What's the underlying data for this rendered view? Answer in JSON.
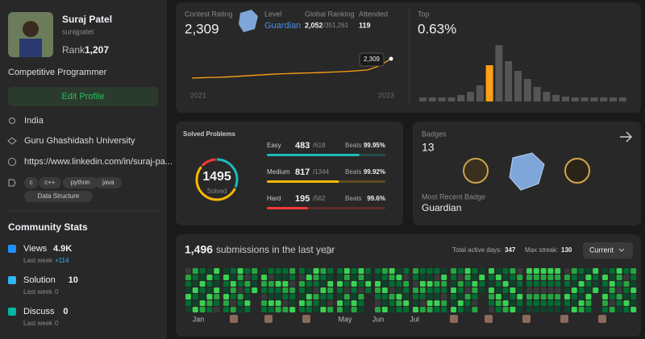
{
  "profile": {
    "name": "Suraj Patel",
    "username": "surajpatel",
    "rank_label": "Rank",
    "rank": "1,207",
    "title": "Competitive Programmer",
    "edit_button": "Edit Profile",
    "location": "India",
    "school": "Guru Ghashidash University",
    "link": "https://www.linkedin.com/in/suraj-pa...",
    "skills": [
      "c",
      "c++",
      "python",
      "java",
      "Data Structure"
    ]
  },
  "community": {
    "title": "Community Stats",
    "items": [
      {
        "label": "Views",
        "value": "4.9K",
        "week_label": "Last week",
        "week_value": "+114"
      },
      {
        "label": "Solution",
        "value": "10",
        "week_label": "Last week",
        "week_value": "0"
      },
      {
        "label": "Discuss",
        "value": "0",
        "week_label": "Last week",
        "week_value": "0"
      }
    ]
  },
  "contest": {
    "label": "Contest Rating",
    "rating": "2,309",
    "level_label": "Level",
    "level": "Guardian",
    "ranking_label": "Global Ranking",
    "ranking": "2,052",
    "ranking_total": "/351,261",
    "attended_label": "Attended",
    "attended": "119",
    "rating_tag": "2,309",
    "years": [
      "2021",
      "2023"
    ],
    "rating_history": [
      1480,
      1500,
      1510,
      1530,
      1560,
      1590,
      1620,
      1650,
      1670,
      1690,
      1700,
      1720,
      1740,
      1760,
      1790,
      1830,
      2000,
      2309
    ],
    "top_label": "Top",
    "top": "0.63%",
    "distribution": [
      5,
      5,
      5,
      5,
      8,
      12,
      20,
      45,
      70,
      50,
      38,
      28,
      18,
      12,
      8,
      6,
      5,
      5,
      5,
      5,
      5,
      5
    ]
  },
  "solved": {
    "title": "Solved Problems",
    "total": "1495",
    "total_label": "Solved",
    "rows": [
      {
        "name": "Easy",
        "solved": 483,
        "total": "/618",
        "beats_label": "Beats",
        "beats": "99.95%",
        "color": "#1cbaba"
      },
      {
        "name": "Medium",
        "solved": 817,
        "total": "/1344",
        "beats_label": "Beats",
        "beats": "99.92%",
        "color": "#ffb700"
      },
      {
        "name": "Hard",
        "solved": 195,
        "total": "/562",
        "beats_label": "Beats",
        "beats": "99.6%",
        "color": "#f63737"
      }
    ]
  },
  "badges": {
    "title": "Badges",
    "count": "13",
    "recent_label": "Most Recent Badge",
    "recent": "Guardian"
  },
  "submissions": {
    "count": "1,496",
    "text": "submissions in the last year",
    "active_label": "Total active days:",
    "active": "347",
    "streak_label": "Max streak:",
    "streak": "130",
    "select": "Current",
    "months": [
      "Jan",
      "May",
      "Jun",
      "Jul"
    ]
  }
}
